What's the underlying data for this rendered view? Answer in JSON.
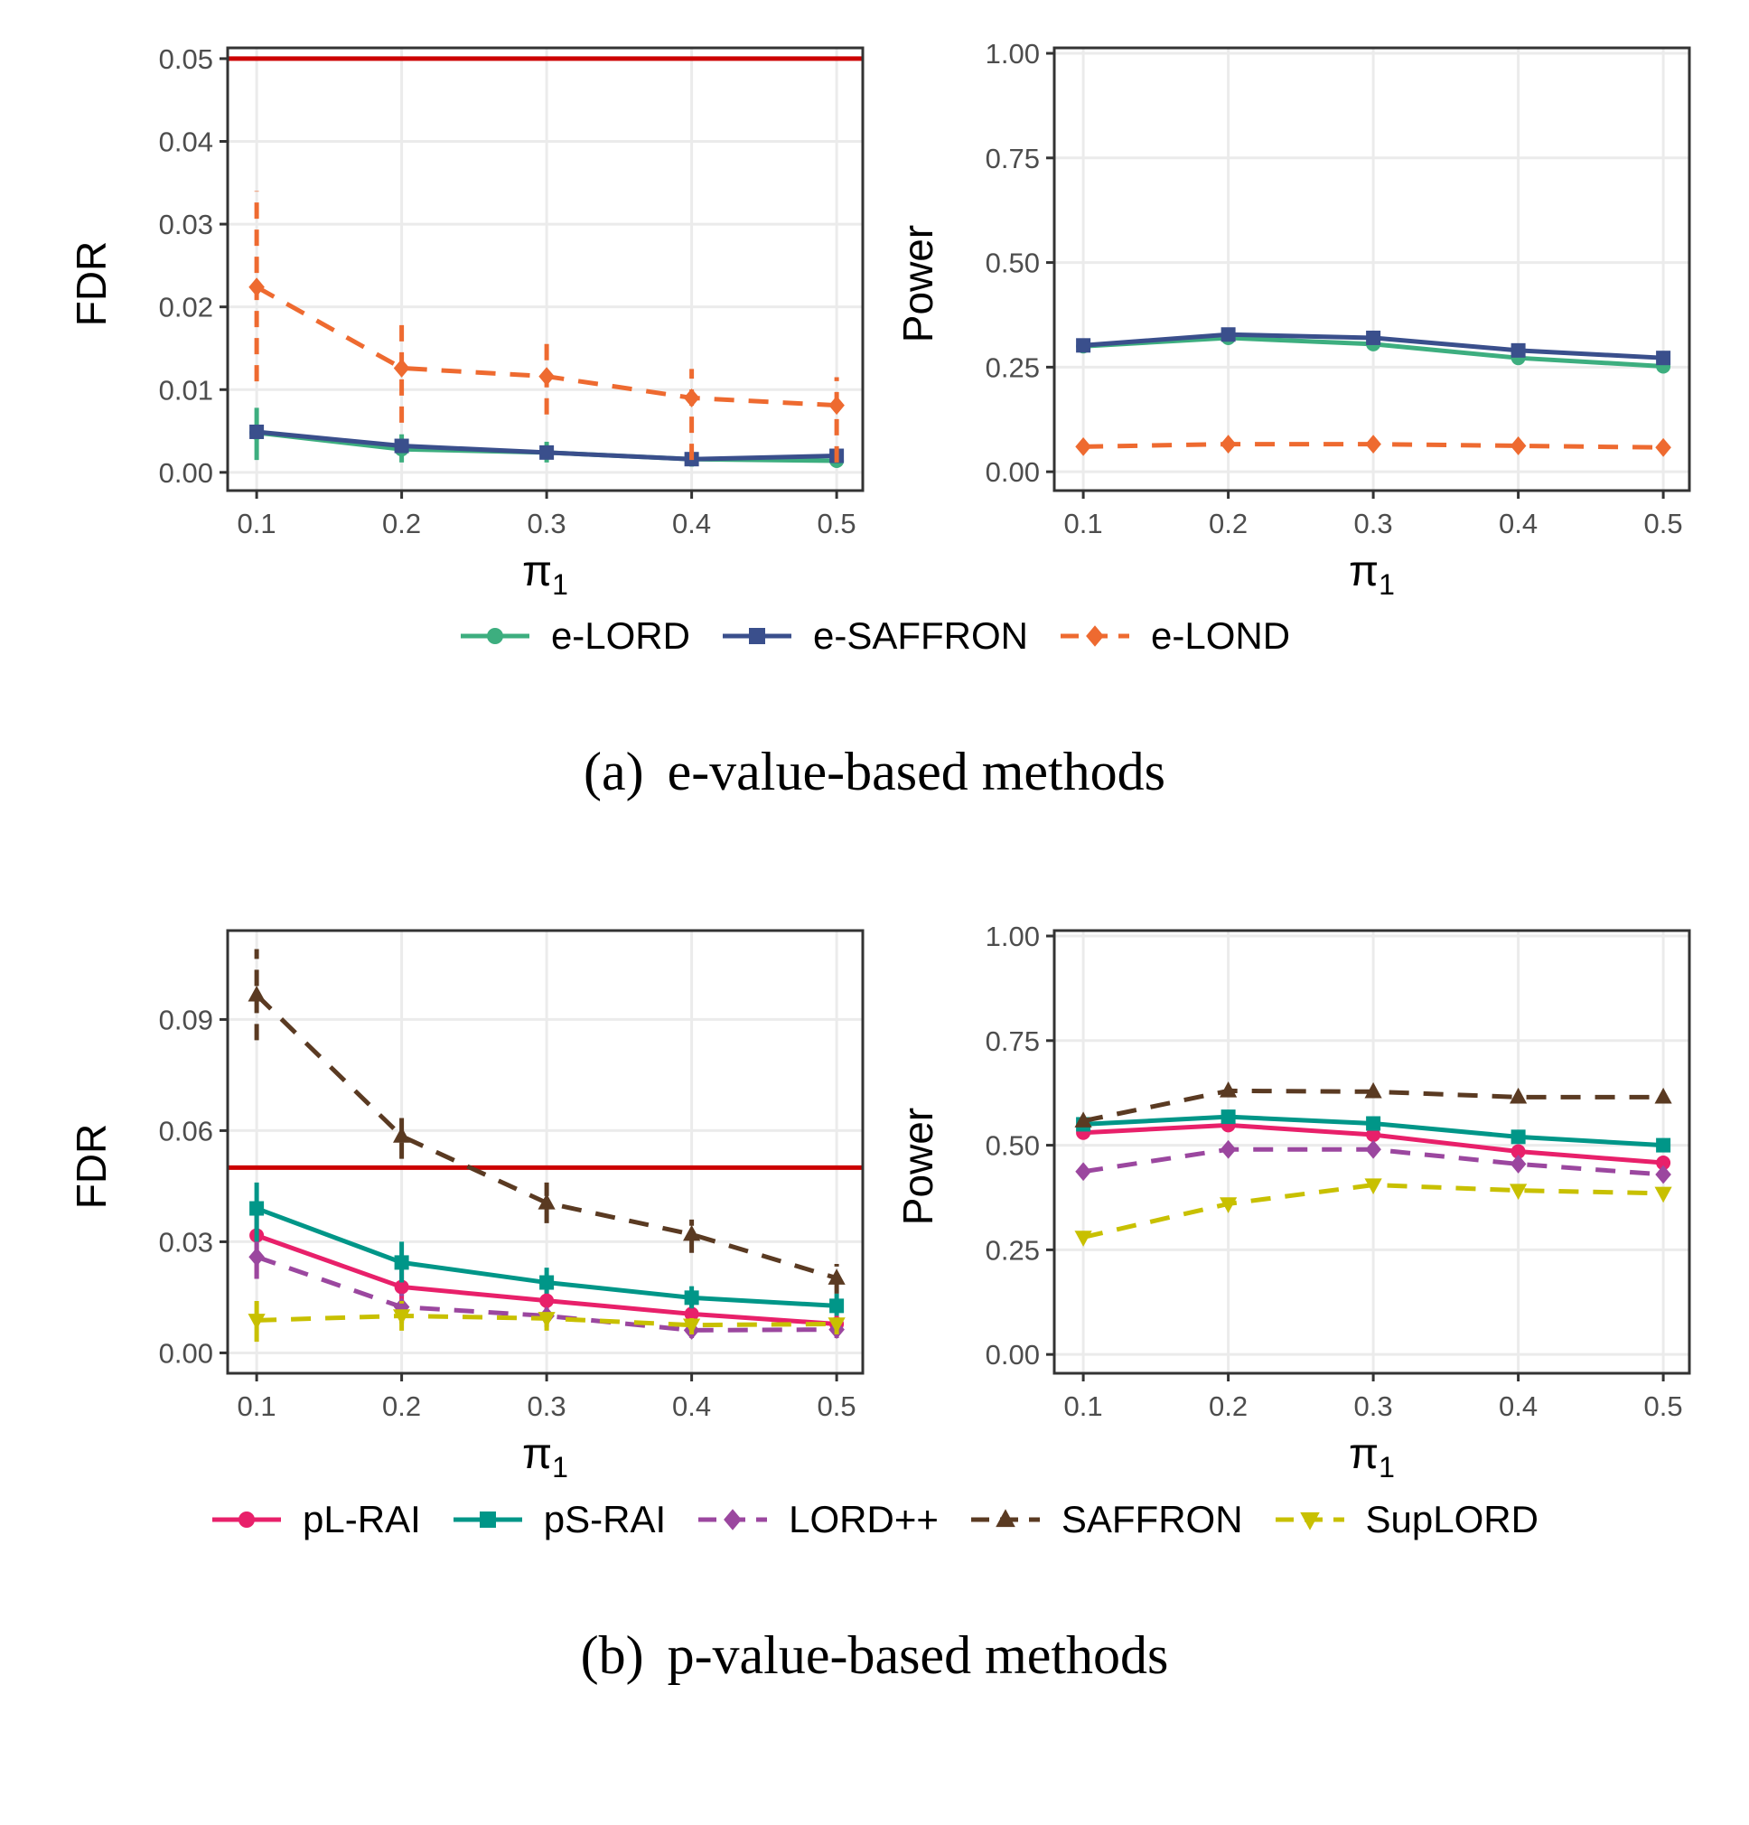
{
  "chart_data": [
    {
      "type": "line",
      "panel": "a-fdr",
      "ylabel": "FDR",
      "xlabel": "π1",
      "x": [
        0.1,
        0.2,
        0.3,
        0.4,
        0.5
      ],
      "xticks": [
        "0.1",
        "0.2",
        "0.3",
        "0.4",
        "0.5"
      ],
      "yticks": [
        0,
        0.01,
        0.02,
        0.03,
        0.04,
        0.05
      ],
      "ytick_labels": [
        "0.00",
        "0.01",
        "0.02",
        "0.03",
        "0.04",
        "0.05"
      ],
      "ylim": [
        -0.0022,
        0.0513
      ],
      "xlim": [
        0.08,
        0.518
      ],
      "grid": true,
      "reference_line": {
        "y": 0.05,
        "color": "#CC0000"
      },
      "series": [
        {
          "name": "e-LORD",
          "color": "#3DAE7F",
          "marker": "circle",
          "dashed": false,
          "values": [
            0.0048,
            0.0028,
            0.0024,
            0.0016,
            0.0014
          ],
          "errors": [
            [
              0.0015,
              0.0078
            ],
            [
              0.0012,
              0.0046
            ],
            [
              0.0012,
              0.0037
            ],
            [
              0.0007,
              0.0025
            ],
            [
              0.0008,
              0.0022
            ]
          ]
        },
        {
          "name": "e-SAFFRON",
          "color": "#3A4F8C",
          "marker": "square",
          "dashed": false,
          "values": [
            0.0049,
            0.0032,
            0.0024,
            0.0016,
            0.002
          ]
        },
        {
          "name": "e-LOND",
          "color": "#EE6A30",
          "marker": "diamond",
          "dashed": true,
          "values": [
            0.0224,
            0.0126,
            0.0116,
            0.009,
            0.0081
          ],
          "errors": [
            [
              0.011,
              0.034
            ],
            [
              0.006,
              0.018
            ],
            [
              0.007,
              0.016
            ],
            [
              0.0015,
              0.0125
            ],
            [
              0.0012,
              0.0115
            ]
          ]
        }
      ]
    },
    {
      "type": "line",
      "panel": "a-power",
      "ylabel": "Power",
      "xlabel": "π1",
      "x": [
        0.1,
        0.2,
        0.3,
        0.4,
        0.5
      ],
      "xticks": [
        "0.1",
        "0.2",
        "0.3",
        "0.4",
        "0.5"
      ],
      "yticks": [
        0,
        0.25,
        0.5,
        0.75,
        1.0
      ],
      "ytick_labels": [
        "0.00",
        "0.25",
        "0.50",
        "0.75",
        "1.00"
      ],
      "ylim": [
        -0.045,
        1.013
      ],
      "xlim": [
        0.08,
        0.518
      ],
      "grid": true,
      "series": [
        {
          "name": "e-LORD",
          "color": "#3DAE7F",
          "marker": "circle",
          "dashed": false,
          "values": [
            0.3,
            0.32,
            0.305,
            0.272,
            0.252
          ]
        },
        {
          "name": "e-SAFFRON",
          "color": "#3A4F8C",
          "marker": "square",
          "dashed": false,
          "values": [
            0.302,
            0.328,
            0.32,
            0.29,
            0.272
          ]
        },
        {
          "name": "e-LOND",
          "color": "#EE6A30",
          "marker": "diamond",
          "dashed": true,
          "values": [
            0.06,
            0.066,
            0.066,
            0.062,
            0.058
          ]
        }
      ]
    },
    {
      "type": "line",
      "panel": "b-fdr",
      "ylabel": "FDR",
      "xlabel": "π1",
      "x": [
        0.1,
        0.2,
        0.3,
        0.4,
        0.5
      ],
      "xticks": [
        "0.1",
        "0.2",
        "0.3",
        "0.4",
        "0.5"
      ],
      "yticks": [
        0,
        0.03,
        0.06,
        0.09
      ],
      "ytick_labels": [
        "0.00",
        "0.03",
        "0.06",
        "0.09"
      ],
      "ylim": [
        -0.0055,
        0.114
      ],
      "xlim": [
        0.08,
        0.518
      ],
      "grid": true,
      "reference_line": {
        "y": 0.05,
        "color": "#CC0000"
      },
      "series": [
        {
          "name": "pL-RAI",
          "color": "#E8206A",
          "marker": "circle",
          "dashed": false,
          "values": [
            0.0317,
            0.0178,
            0.0141,
            0.0105,
            0.0078
          ],
          "errors": [
            [
              0.02,
              0.04
            ],
            [
              0.012,
              0.024
            ],
            [
              0.011,
              0.017
            ],
            [
              0.008,
              0.013
            ],
            [
              0.006,
              0.01
            ]
          ]
        },
        {
          "name": "pS-RAI",
          "color": "#009688",
          "marker": "square",
          "dashed": false,
          "values": [
            0.039,
            0.0244,
            0.019,
            0.0149,
            0.0127
          ],
          "errors": [
            [
              0.03,
              0.046
            ],
            [
              0.019,
              0.03
            ],
            [
              0.016,
              0.023
            ],
            [
              0.012,
              0.018
            ],
            [
              0.01,
              0.016
            ]
          ]
        },
        {
          "name": "LORD++",
          "color": "#9B479F",
          "marker": "diamond",
          "dashed": true,
          "values": [
            0.0259,
            0.0124,
            0.01,
            0.0061,
            0.0063
          ],
          "errors": [
            [
              0.02,
              0.03
            ],
            [
              0.008,
              0.016
            ],
            [
              0.007,
              0.013
            ],
            [
              0.004,
              0.008
            ],
            [
              0.004,
              0.008
            ]
          ]
        },
        {
          "name": "SAFFRON",
          "color": "#5A3A22",
          "marker": "triangle",
          "dashed": true,
          "values": [
            0.0966,
            0.0585,
            0.0405,
            0.032,
            0.0202
          ],
          "errors": [
            [
              0.0844,
              0.109
            ],
            [
              0.0524,
              0.0634
            ],
            [
              0.035,
              0.046
            ],
            [
              0.027,
              0.036
            ],
            [
              0.016,
              0.024
            ]
          ]
        },
        {
          "name": "SupLORD",
          "color": "#C8C000",
          "marker": "triangle-down",
          "dashed": true,
          "values": [
            0.0088,
            0.01,
            0.0093,
            0.0075,
            0.0078
          ],
          "errors": [
            [
              0.003,
              0.014
            ],
            [
              0.006,
              0.014
            ],
            [
              0.006,
              0.012
            ],
            [
              0.005,
              0.01
            ],
            [
              0.005,
              0.01
            ]
          ]
        }
      ]
    },
    {
      "type": "line",
      "panel": "b-power",
      "ylabel": "Power",
      "xlabel": "π1",
      "x": [
        0.1,
        0.2,
        0.3,
        0.4,
        0.5
      ],
      "xticks": [
        "0.1",
        "0.2",
        "0.3",
        "0.4",
        "0.5"
      ],
      "yticks": [
        0,
        0.25,
        0.5,
        0.75,
        1.0
      ],
      "ytick_labels": [
        "0.00",
        "0.25",
        "0.50",
        "0.75",
        "1.00"
      ],
      "ylim": [
        -0.045,
        1.013
      ],
      "xlim": [
        0.08,
        0.518
      ],
      "grid": true,
      "series": [
        {
          "name": "pL-RAI",
          "color": "#E8206A",
          "marker": "circle",
          "dashed": false,
          "values": [
            0.53,
            0.548,
            0.525,
            0.485,
            0.458
          ]
        },
        {
          "name": "pS-RAI",
          "color": "#009688",
          "marker": "square",
          "dashed": false,
          "values": [
            0.55,
            0.568,
            0.552,
            0.52,
            0.5
          ]
        },
        {
          "name": "LORD++",
          "color": "#9B479F",
          "marker": "diamond",
          "dashed": true,
          "values": [
            0.437,
            0.49,
            0.49,
            0.455,
            0.43
          ]
        },
        {
          "name": "SAFFRON",
          "color": "#5A3A22",
          "marker": "triangle",
          "dashed": true,
          "values": [
            0.558,
            0.63,
            0.628,
            0.615,
            0.615
          ]
        },
        {
          "name": "SupLORD",
          "color": "#C8C000",
          "marker": "triangle-down",
          "dashed": true,
          "values": [
            0.28,
            0.36,
            0.405,
            0.392,
            0.385
          ]
        }
      ]
    }
  ],
  "legend_a": [
    "e-LORD",
    "e-SAFFRON",
    "e-LOND"
  ],
  "legend_b": [
    "pL-RAI",
    "pS-RAI",
    "LORD++",
    "SAFFRON",
    "SupLORD"
  ],
  "caption_a": {
    "label": "(a)",
    "text": "e-value-based methods"
  },
  "caption_b": {
    "label": "(b)",
    "text": "p-value-based methods"
  }
}
